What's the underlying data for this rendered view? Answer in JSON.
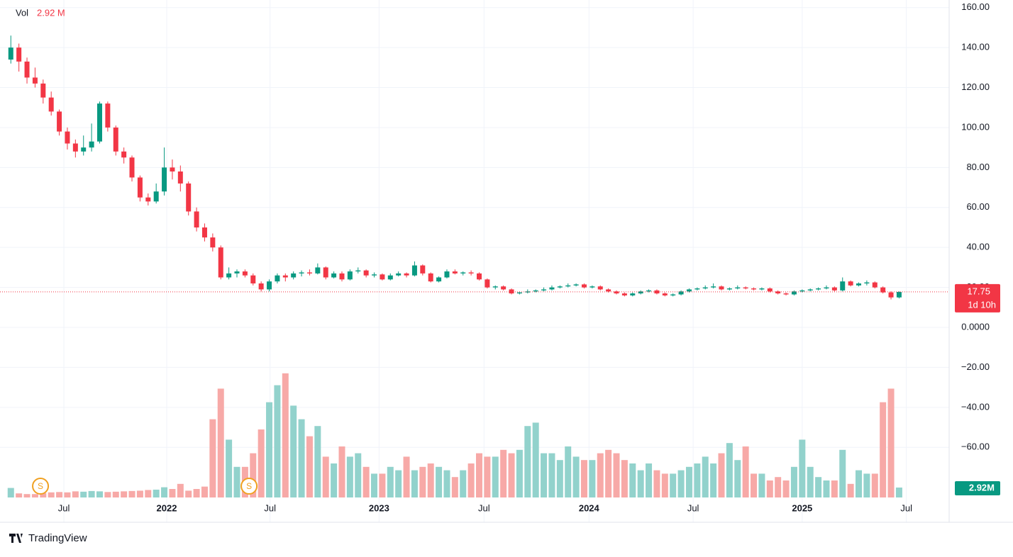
{
  "chart_data": {
    "type": "candlestick",
    "legend": {
      "label": "Vol",
      "value_label": "2.92 M"
    },
    "last_volume_label": "2.92M",
    "countdown": "1d 10h",
    "up_color": "#089981",
    "down_color": "#f23645",
    "up_volume_color": "#92d2cc",
    "down_volume_color": "#f7a9a7",
    "grid": true,
    "xlim": [
      -0.2,
      116.2
    ],
    "xticks": [
      {
        "value": 6.57,
        "label": "Jul"
      },
      {
        "value": 19.3,
        "label": "2022"
      },
      {
        "value": 32.1,
        "label": "Jul"
      },
      {
        "value": 45.6,
        "label": "2023"
      },
      {
        "value": 58.6,
        "label": "Jul"
      },
      {
        "value": 71.6,
        "label": "2024"
      },
      {
        "value": 84.5,
        "label": "Jul"
      },
      {
        "value": 98.0,
        "label": "2025"
      },
      {
        "value": 110.9,
        "label": "Jul"
      }
    ],
    "ylim": [
      -97.5,
      163.8
    ],
    "yticks": [
      {
        "value": 160,
        "label": "160.00"
      },
      {
        "value": 140,
        "label": "140.00"
      },
      {
        "value": 120,
        "label": "120.00"
      },
      {
        "value": 100,
        "label": "100.00"
      },
      {
        "value": 80,
        "label": "80.00"
      },
      {
        "value": 60,
        "label": "60.00"
      },
      {
        "value": 40,
        "label": "40.00"
      },
      {
        "value": 20,
        "label": "20.00"
      },
      {
        "value": 0,
        "label": "0.0000"
      },
      {
        "value": -20,
        "label": "−20.00"
      },
      {
        "value": -40,
        "label": "−40.00"
      },
      {
        "value": -60,
        "label": "−60.00"
      }
    ],
    "volume_lim": [
      0,
      50
    ],
    "events": [
      {
        "x": 3.67,
        "label": "S"
      },
      {
        "x": 29.5,
        "label": "S"
      }
    ],
    "ohlc": [
      [
        134,
        146,
        132,
        140
      ],
      [
        140,
        142,
        128,
        133
      ],
      [
        133,
        135,
        122,
        125
      ],
      [
        125,
        130,
        120,
        122
      ],
      [
        122,
        124,
        112,
        115
      ],
      [
        115,
        118,
        106,
        108
      ],
      [
        108,
        109,
        96,
        98
      ],
      [
        98,
        100,
        89,
        92
      ],
      [
        92,
        94,
        85,
        88
      ],
      [
        88,
        96,
        86,
        90
      ],
      [
        90,
        102,
        88,
        93
      ],
      [
        93,
        113,
        92,
        112
      ],
      [
        112,
        113,
        98,
        100
      ],
      [
        100,
        101,
        86,
        88
      ],
      [
        88,
        90,
        82,
        85
      ],
      [
        85,
        86,
        73,
        75
      ],
      [
        75,
        76,
        63,
        65
      ],
      [
        65,
        67,
        61,
        63
      ],
      [
        63,
        72,
        62,
        68
      ],
      [
        68,
        90,
        66,
        80
      ],
      [
        80,
        84,
        74,
        78
      ],
      [
        78,
        81,
        68,
        72
      ],
      [
        72,
        73,
        56,
        58
      ],
      [
        58,
        60,
        48,
        50
      ],
      [
        50,
        52,
        43,
        45
      ],
      [
        45,
        47,
        38,
        40
      ],
      [
        40,
        41,
        24,
        25
      ],
      [
        25,
        30,
        24,
        27
      ],
      [
        27,
        29,
        25,
        28
      ],
      [
        28,
        29,
        25,
        26
      ],
      [
        26,
        27,
        21,
        22
      ],
      [
        22,
        23,
        18,
        19
      ],
      [
        19,
        24,
        18,
        23
      ],
      [
        23,
        27,
        22,
        26
      ],
      [
        26,
        27,
        23,
        25
      ],
      [
        25,
        28,
        24,
        27
      ],
      [
        27,
        28.5,
        25.5,
        27.5
      ],
      [
        27.5,
        29,
        26,
        27
      ],
      [
        27,
        32,
        26.5,
        30
      ],
      [
        30,
        30.5,
        24,
        25
      ],
      [
        25,
        28,
        24.5,
        27
      ],
      [
        27,
        28,
        23,
        24
      ],
      [
        24,
        29,
        23.5,
        28
      ],
      [
        28,
        30,
        27,
        28.5
      ],
      [
        28.5,
        29,
        25,
        26
      ],
      [
        26,
        27.5,
        25,
        26.5
      ],
      [
        26.5,
        27,
        23.5,
        24
      ],
      [
        24,
        27,
        23.5,
        26
      ],
      [
        26,
        28,
        25.5,
        27
      ],
      [
        27,
        27.5,
        25,
        26
      ],
      [
        26,
        33,
        25.5,
        31
      ],
      [
        31,
        31.5,
        26,
        27
      ],
      [
        27,
        27.5,
        22.5,
        23
      ],
      [
        23,
        25.5,
        22.5,
        25
      ],
      [
        25,
        29,
        24.5,
        28
      ],
      [
        28,
        29,
        26.5,
        27
      ],
      [
        27,
        28,
        26,
        27.5
      ],
      [
        27.5,
        28.5,
        26,
        27
      ],
      [
        27,
        27.5,
        23.5,
        24
      ],
      [
        24,
        24.5,
        19.5,
        20
      ],
      [
        20,
        21,
        19,
        20.5
      ],
      [
        20.5,
        21,
        18.5,
        19
      ],
      [
        19,
        19.5,
        16.5,
        17
      ],
      [
        17,
        18,
        16.5,
        17.5
      ],
      [
        17.5,
        19,
        17,
        18
      ],
      [
        18,
        19,
        17.5,
        18.5
      ],
      [
        18.5,
        20,
        18,
        19
      ],
      [
        19,
        21,
        18.5,
        20
      ],
      [
        20,
        21,
        19.5,
        20.5
      ],
      [
        20.5,
        22,
        20,
        21
      ],
      [
        21,
        22,
        20.5,
        21.5
      ],
      [
        21.5,
        22,
        19.5,
        20
      ],
      [
        20,
        21,
        19.5,
        20.5
      ],
      [
        20.5,
        21,
        18.5,
        19
      ],
      [
        19,
        19.5,
        17.5,
        18
      ],
      [
        18,
        18.5,
        16.5,
        17
      ],
      [
        17,
        17.5,
        15.5,
        16
      ],
      [
        16,
        17.5,
        15.5,
        17
      ],
      [
        17,
        18.5,
        16.5,
        18
      ],
      [
        18,
        19,
        17.5,
        18.5
      ],
      [
        18.5,
        19,
        16.5,
        17
      ],
      [
        17,
        17.5,
        15.5,
        16
      ],
      [
        16,
        17,
        15.5,
        16.5
      ],
      [
        16.5,
        18.5,
        16,
        18
      ],
      [
        18,
        19.5,
        17.5,
        19
      ],
      [
        19,
        20,
        18.5,
        19.5
      ],
      [
        19.5,
        21,
        19,
        20
      ],
      [
        20,
        22,
        19.5,
        20.5
      ],
      [
        20.5,
        21,
        18.5,
        19
      ],
      [
        19,
        20,
        18.5,
        19.5
      ],
      [
        19.5,
        21,
        19,
        20
      ],
      [
        20,
        20.5,
        19,
        19.5
      ],
      [
        19.5,
        20,
        18.5,
        19
      ],
      [
        19,
        20,
        18.5,
        19.5
      ],
      [
        19.5,
        20,
        17.5,
        18
      ],
      [
        18,
        18.5,
        16.5,
        17
      ],
      [
        17,
        17.5,
        16,
        16.5
      ],
      [
        16.5,
        18.5,
        16,
        18
      ],
      [
        18,
        19,
        17.5,
        18.5
      ],
      [
        18.5,
        19.5,
        18,
        19
      ],
      [
        19,
        20,
        18.5,
        19.5
      ],
      [
        19.5,
        21,
        19,
        20
      ],
      [
        20,
        20.5,
        18,
        18.5
      ],
      [
        18.5,
        25,
        18,
        23
      ],
      [
        23,
        23.5,
        20.5,
        21
      ],
      [
        21,
        22.5,
        20.5,
        22
      ],
      [
        22,
        23.5,
        21,
        22.5
      ],
      [
        22.5,
        23,
        19.5,
        20
      ],
      [
        20,
        20.5,
        17,
        17.5
      ],
      [
        17.5,
        18,
        14,
        15
      ],
      [
        15,
        18,
        14.5,
        17.75
      ]
    ],
    "volume": [
      2.8,
      1.2,
      1.0,
      1.0,
      1.3,
      1.5,
      1.6,
      1.5,
      1.8,
      1.7,
      1.9,
      1.8,
      1.6,
      1.7,
      1.8,
      1.9,
      2.0,
      2.2,
      2.3,
      3.0,
      2.5,
      4.0,
      2.0,
      2.5,
      3.2,
      23,
      32,
      17,
      9,
      9,
      13,
      20,
      28,
      33,
      36.5,
      27,
      23,
      18,
      21,
      12,
      10,
      15,
      12,
      13,
      9,
      7,
      7,
      9,
      8,
      12,
      8,
      9,
      10,
      9,
      8,
      6,
      8,
      10,
      13,
      12,
      12,
      14,
      13,
      14,
      21,
      22,
      13,
      13,
      11,
      15,
      12,
      11,
      11,
      13,
      14,
      13,
      11,
      10,
      8,
      10,
      8,
      7,
      7,
      8,
      9,
      10,
      12,
      10,
      13,
      16,
      11,
      15,
      7,
      7,
      5,
      6,
      5,
      9,
      17,
      9,
      6,
      5,
      5,
      14,
      4,
      8,
      7,
      7,
      28,
      32,
      2.92
    ]
  }
}
